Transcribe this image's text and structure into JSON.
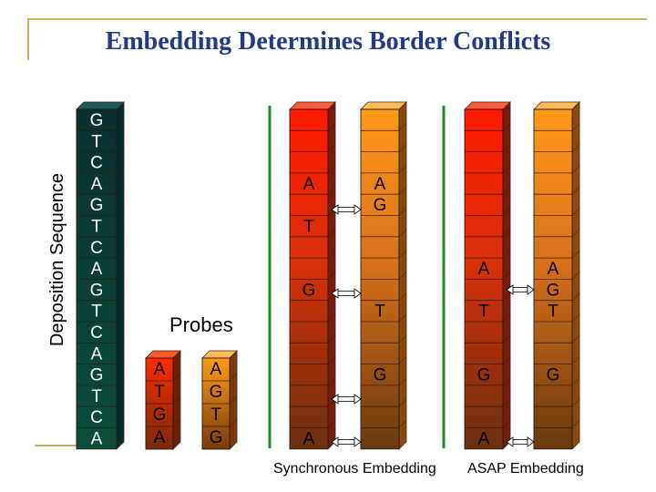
{
  "title": "Embedding Determines Border Conflicts",
  "ylabel": "Deposition Sequence",
  "deposition_sequence": [
    "G",
    "T",
    "C",
    "A",
    "G",
    "T",
    "C",
    "A",
    "G",
    "T",
    "C",
    "A",
    "G",
    "T",
    "C",
    "A"
  ],
  "probes_label": "Probes",
  "probe1": [
    "A",
    "T",
    "G",
    "A"
  ],
  "probe2": [
    "A",
    "G",
    "T",
    "G"
  ],
  "sync_left_letters": [
    "A",
    "T",
    "G",
    "A"
  ],
  "sync_right_letters": [
    "A",
    "G",
    "T",
    "G"
  ],
  "asap_left_letters": [
    "A",
    "T",
    "G",
    "A"
  ],
  "asap_right_letters": [
    "A",
    "G",
    "T",
    "G"
  ],
  "caption_sync": "Synchronous Embedding",
  "caption_asap": "ASAP Embedding",
  "colors": {
    "title": "#203a86",
    "frame": "#c8b45a",
    "divider": "#1f8a2a",
    "teal_top": "#0b3a3a",
    "teal_bottom": "#0a4a3a",
    "red_top": "#ff1a00",
    "orange_top": "#ff9a1a",
    "brown_bottom": "#6a3a10"
  },
  "icons": [
    "double-arrow-icon"
  ]
}
